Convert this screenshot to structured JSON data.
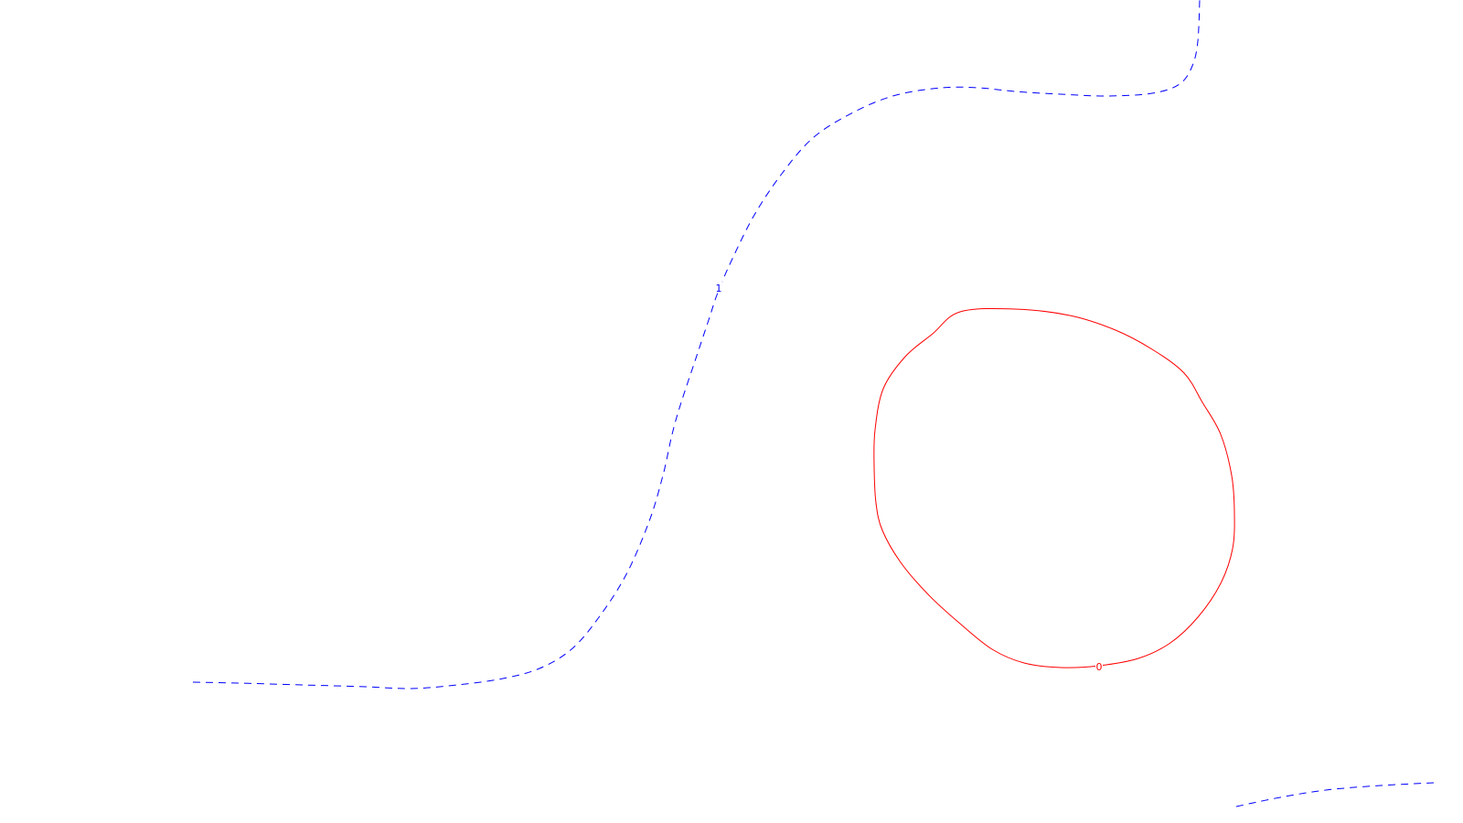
{
  "chart_data": {
    "type": "contour",
    "grid": false,
    "axes_visible": false,
    "legend": "none",
    "series": [
      {
        "level_label": "1",
        "color": "#0000ff",
        "line_style": "dashed",
        "segments": [
          {
            "points": [
              [
                211,
                746
              ],
              [
                260,
                747
              ],
              [
                330,
                749
              ],
              [
                400,
                751
              ],
              [
                450,
                753
              ],
              [
                500,
                749
              ],
              [
                550,
                742
              ],
              [
                590,
                731
              ],
              [
                625,
                710
              ],
              [
                655,
                675
              ],
              [
                685,
                628
              ],
              [
                710,
                570
              ],
              [
                725,
                520
              ],
              [
                735,
                475
              ],
              [
                745,
                440
              ],
              [
                760,
                395
              ],
              [
                775,
                350
              ],
              [
                785,
                320
              ],
              [
                800,
                285
              ],
              [
                825,
                235
              ],
              [
                855,
                190
              ],
              [
                890,
                150
              ],
              [
                935,
                122
              ],
              [
                980,
                104
              ],
              [
                1030,
                96
              ],
              [
                1070,
                96
              ],
              [
                1110,
                100
              ],
              [
                1160,
                103
              ],
              [
                1210,
                105
              ],
              [
                1260,
                102
              ],
              [
                1290,
                92
              ],
              [
                1304,
                72
              ],
              [
                1310,
                45
              ],
              [
                1312,
                0
              ]
            ]
          },
          {
            "points": [
              [
                1352,
                882
              ],
              [
                1400,
                872
              ],
              [
                1450,
                864
              ],
              [
                1510,
                859
              ],
              [
                1568,
                856
              ]
            ]
          }
        ],
        "label_position": [
          786,
          315
        ]
      },
      {
        "level_label": "0",
        "color": "#ff0000",
        "line_style": "solid",
        "closed": true,
        "segments": [
          {
            "points": [
              [
                1202,
                728
              ],
              [
                1245,
                720
              ],
              [
                1280,
                703
              ],
              [
                1310,
                675
              ],
              [
                1335,
                638
              ],
              [
                1348,
                600
              ],
              [
                1350,
                560
              ],
              [
                1347,
                520
              ],
              [
                1335,
                475
              ],
              [
                1315,
                440
              ],
              [
                1295,
                408
              ],
              [
                1260,
                382
              ],
              [
                1220,
                361
              ],
              [
                1170,
                345
              ],
              [
                1110,
                338
              ],
              [
                1050,
                341
              ],
              [
                1020,
                365
              ],
              [
                990,
                390
              ],
              [
                966,
                425
              ],
              [
                957,
                470
              ],
              [
                956,
                510
              ],
              [
                958,
                550
              ],
              [
                965,
                580
              ],
              [
                985,
                615
              ],
              [
                1015,
                650
              ],
              [
                1050,
                682
              ],
              [
                1085,
                710
              ],
              [
                1120,
                725
              ],
              [
                1160,
                730
              ],
              [
                1202,
                728
              ]
            ]
          }
        ],
        "label_position": [
          1202,
          729
        ]
      }
    ]
  }
}
